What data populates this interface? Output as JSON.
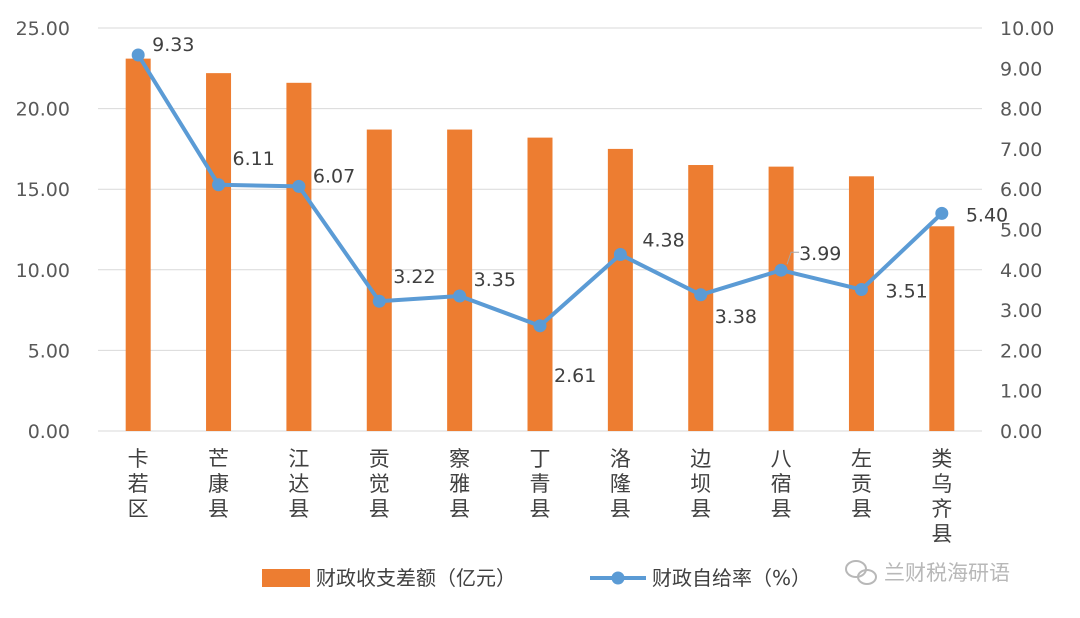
{
  "chart_data": {
    "type": "bar+line",
    "categories": [
      "卡若区",
      "芒康县",
      "江达县",
      "贡觉县",
      "察雅县",
      "丁青县",
      "洛隆县",
      "边坝县",
      "八宿县",
      "左贡县",
      "类乌齐县"
    ],
    "series": [
      {
        "name": "财政收支差额（亿元）",
        "type": "bar",
        "axis": "left",
        "color": "#ED7D31",
        "values": [
          23.1,
          22.2,
          21.6,
          18.7,
          18.7,
          18.2,
          17.5,
          16.5,
          16.4,
          15.8,
          12.7
        ]
      },
      {
        "name": "财政自给率（%）",
        "type": "line",
        "axis": "right",
        "color": "#5B9BD5",
        "values": [
          9.33,
          6.11,
          6.07,
          3.22,
          3.35,
          2.61,
          4.38,
          3.38,
          3.99,
          3.51,
          5.4
        ],
        "labels": [
          "9.33",
          "6.11",
          "6.07",
          "3.22",
          "3.35",
          "2.61",
          "4.38",
          "3.38",
          "3.99",
          "3.51",
          "5.40"
        ]
      }
    ],
    "y_left": {
      "ylim": [
        0,
        25
      ],
      "ticks": [
        "0.00",
        "5.00",
        "10.00",
        "15.00",
        "20.00",
        "25.00"
      ]
    },
    "y_right": {
      "ylim": [
        0,
        10
      ],
      "ticks": [
        "0.00",
        "1.00",
        "2.00",
        "3.00",
        "4.00",
        "5.00",
        "6.00",
        "7.00",
        "8.00",
        "9.00",
        "10.00"
      ]
    },
    "grid": true,
    "legend_position": "bottom"
  },
  "watermark": {
    "text": "兰财税海研语",
    "icon": "wechat-icon"
  }
}
